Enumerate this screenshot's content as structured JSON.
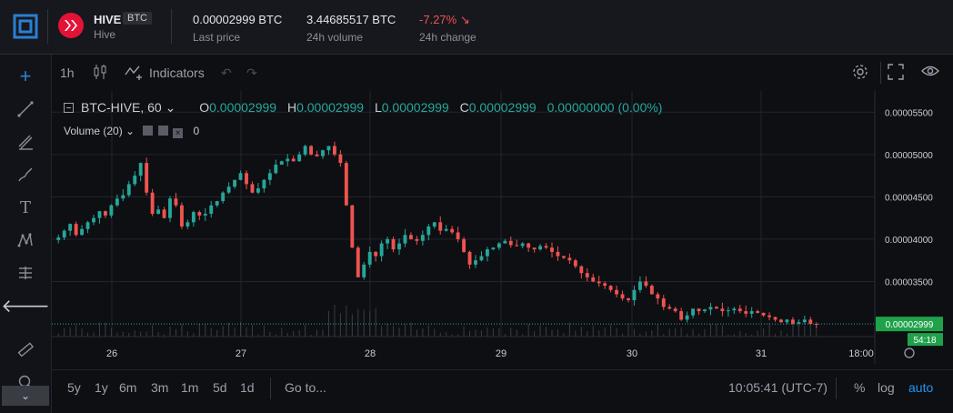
{
  "header": {
    "coin_symbol": "HIVE",
    "pair_badge": "BTC",
    "coin_name": "Hive",
    "last_price": "0.00002999 BTC",
    "last_price_label": "Last price",
    "volume": "3.44685517 BTC",
    "volume_label": "24h volume",
    "change": "-7.27%",
    "change_label": "24h change",
    "brand_color": "#e31337",
    "accent_color": "#2196f3"
  },
  "left_toolbar": {
    "icons": [
      "crosshair-icon",
      "trend-line-icon",
      "fib-icon",
      "brush-icon",
      "text-icon",
      "pattern-icon",
      "measure-icon",
      "back-arrow-icon",
      "ruler-icon",
      "zoom-icon"
    ],
    "collapse_glyph": "⌄"
  },
  "chart_toolbar": {
    "interval": "1h",
    "indicators_label": "Indicators"
  },
  "legend": {
    "symbol": "BTC-HIVE, 60",
    "o_label": "O",
    "o_value": "0.00002999",
    "h_label": "H",
    "h_value": "0.00002999",
    "l_label": "L",
    "l_value": "0.00002999",
    "c_label": "C",
    "c_value": "0.00002999",
    "change_value": "0.00000000 (0.00%)",
    "volume_label": "Volume (20)",
    "volume_value": "0"
  },
  "chart_data": {
    "type": "candlestick",
    "title": "",
    "x_ticks": [
      "26",
      "27",
      "28",
      "29",
      "30",
      "31",
      "18:00"
    ],
    "y_ticks": [
      "0.00005500",
      "0.00005000",
      "0.00004500",
      "0.00004000",
      "0.00003500"
    ],
    "ylim": [
      2.85e-05,
      5.75e-05
    ],
    "last_price_label": "0.00002999",
    "countdown_label": "54:18",
    "up_color": "#26a69a",
    "down_color": "#ef5350",
    "close_path": [
      4.02e-05,
      4.1e-05,
      4.18e-05,
      4.05e-05,
      4.12e-05,
      4.2e-05,
      4.25e-05,
      4.33e-05,
      4.28e-05,
      4.4e-05,
      4.48e-05,
      4.52e-05,
      4.65e-05,
      4.75e-05,
      4.9e-05,
      4.55e-05,
      4.3e-05,
      4.35e-05,
      4.25e-05,
      4.48e-05,
      4.4e-05,
      4.15e-05,
      4.2e-05,
      4.32e-05,
      4.28e-05,
      4.3e-05,
      4.4e-05,
      4.45e-05,
      4.55e-05,
      4.62e-05,
      4.7e-05,
      4.78e-05,
      4.65e-05,
      4.55e-05,
      4.6e-05,
      4.7e-05,
      4.78e-05,
      4.88e-05,
      4.92e-05,
      4.95e-05,
      4.92e-05,
      5e-05,
      5.1e-05,
      5e-05,
      4.98e-05,
      5.05e-05,
      5.1e-05,
      5e-05,
      4.9e-05,
      4.4e-05,
      3.9e-05,
      3.55e-05,
      3.7e-05,
      3.85e-05,
      3.8e-05,
      3.95e-05,
      4e-05,
      3.88e-05,
      3.95e-05,
      4.05e-05,
      4e-05,
      3.98e-05,
      4.05e-05,
      4.15e-05,
      4.2e-05,
      4.1e-05,
      4.12e-05,
      4.08e-05,
      4e-05,
      3.85e-05,
      3.7e-05,
      3.75e-05,
      3.8e-05,
      3.88e-05,
      3.9e-05,
      3.95e-05,
      3.98e-05,
      3.93e-05,
      3.92e-05,
      3.95e-05,
      3.9e-05,
      3.88e-05,
      3.92e-05,
      3.9e-05,
      3.85e-05,
      3.8e-05,
      3.78e-05,
      3.75e-05,
      3.68e-05,
      3.6e-05,
      3.55e-05,
      3.5e-05,
      3.48e-05,
      3.45e-05,
      3.4e-05,
      3.35e-05,
      3.3e-05,
      3.28e-05,
      3.4e-05,
      3.5e-05,
      3.45e-05,
      3.35e-05,
      3.3e-05,
      3.2e-05,
      3.18e-05,
      3.15e-05,
      3.05e-05,
      3.1e-05,
      3.18e-05,
      3.15e-05,
      3.17e-05,
      3.2e-05,
      3.18e-05,
      3.15e-05,
      3.16e-05,
      3.18e-05,
      3.15e-05,
      3.12e-05,
      3.15e-05,
      3.13e-05,
      3.1e-05,
      3.08e-05,
      3.05e-05,
      3.02e-05,
      3.05e-05,
      3e-05,
      3.02e-05,
      3.05e-05,
      3e-05,
      2.99e-05
    ]
  },
  "bottom_bar": {
    "ranges": [
      "5y",
      "1y",
      "6m",
      "3m",
      "1m",
      "5d",
      "1d"
    ],
    "goto_label": "Go to...",
    "clock": "10:05:41 (UTC-7)",
    "percent_label": "%",
    "log_label": "log",
    "auto_label": "auto"
  }
}
